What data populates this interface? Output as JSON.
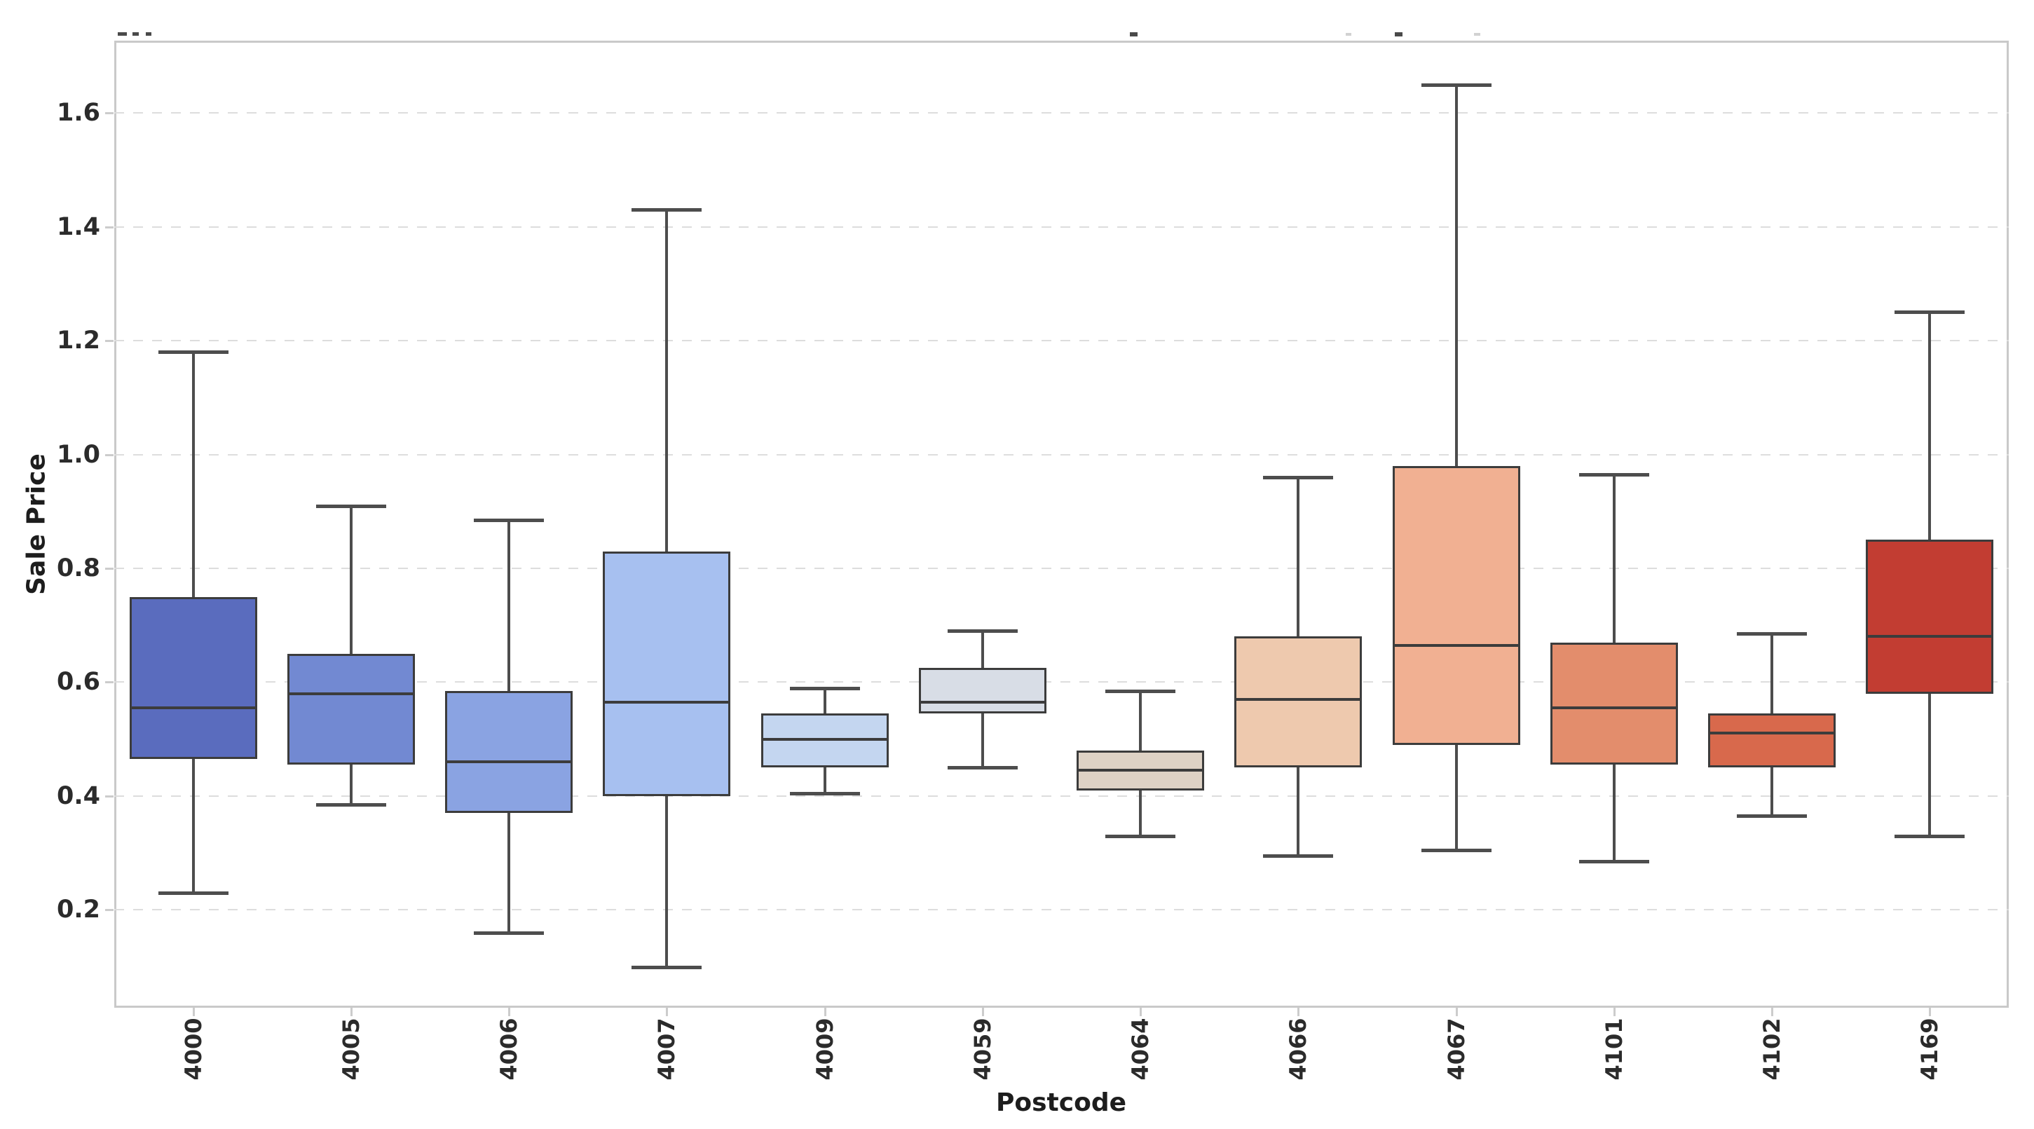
{
  "figure": {
    "ylabel": "Sale Price",
    "xlabel": "Postcode"
  },
  "chart_data": {
    "type": "box",
    "title": "",
    "xlabel": "Postcode",
    "ylabel": "Sale Price",
    "categories": [
      "4000",
      "4005",
      "4006",
      "4007",
      "4009",
      "4059",
      "4064",
      "4066",
      "4067",
      "4101",
      "4102",
      "4169"
    ],
    "yticks": [
      0.2,
      0.4,
      0.6,
      0.8,
      1.0,
      1.2,
      1.4,
      1.6
    ],
    "ylim": [
      0.028,
      1.727
    ],
    "grid": "horizontal-dashed",
    "legend": "none",
    "palette": [
      "#5a6cbe",
      "#7289d2",
      "#8aa3e2",
      "#a7c0f0",
      "#c4d6f0",
      "#d8dde6",
      "#ded2c5",
      "#eec9ae",
      "#f1b092",
      "#e38d6c",
      "#d8694c",
      "#c23d32"
    ],
    "series": [
      {
        "category": "4000",
        "whisker_low": 0.23,
        "q1": 0.465,
        "median": 0.555,
        "q3": 0.75,
        "whisker_high": 1.18,
        "color": "#5a6cbe"
      },
      {
        "category": "4005",
        "whisker_low": 0.385,
        "q1": 0.455,
        "median": 0.58,
        "q3": 0.65,
        "whisker_high": 0.91,
        "color": "#7289d2"
      },
      {
        "category": "4006",
        "whisker_low": 0.16,
        "q1": 0.37,
        "median": 0.46,
        "q3": 0.585,
        "whisker_high": 0.885,
        "color": "#8aa3e2"
      },
      {
        "category": "4007",
        "whisker_low": 0.1,
        "q1": 0.4,
        "median": 0.565,
        "q3": 0.83,
        "whisker_high": 1.43,
        "color": "#a7c0f0"
      },
      {
        "category": "4009",
        "whisker_low": 0.405,
        "q1": 0.45,
        "median": 0.5,
        "q3": 0.545,
        "whisker_high": 0.59,
        "color": "#c4d6f0"
      },
      {
        "category": "4059",
        "whisker_low": 0.45,
        "q1": 0.545,
        "median": 0.565,
        "q3": 0.625,
        "whisker_high": 0.69,
        "color": "#d8dde6"
      },
      {
        "category": "4064",
        "whisker_low": 0.33,
        "q1": 0.41,
        "median": 0.445,
        "q3": 0.48,
        "whisker_high": 0.585,
        "color": "#ded2c5"
      },
      {
        "category": "4066",
        "whisker_low": 0.295,
        "q1": 0.45,
        "median": 0.57,
        "q3": 0.68,
        "whisker_high": 0.96,
        "color": "#eec9ae"
      },
      {
        "category": "4067",
        "whisker_low": 0.305,
        "q1": 0.49,
        "median": 0.665,
        "q3": 0.98,
        "whisker_high": 1.65,
        "color": "#f1b092"
      },
      {
        "category": "4101",
        "whisker_low": 0.285,
        "q1": 0.455,
        "median": 0.555,
        "q3": 0.67,
        "whisker_high": 0.965,
        "color": "#e38d6c"
      },
      {
        "category": "4102",
        "whisker_low": 0.365,
        "q1": 0.45,
        "median": 0.51,
        "q3": 0.545,
        "whisker_high": 0.685,
        "color": "#d8694c"
      },
      {
        "category": "4169",
        "whisker_low": 0.33,
        "q1": 0.58,
        "median": 0.68,
        "q3": 0.85,
        "whisker_high": 1.25,
        "color": "#c23d32"
      }
    ]
  }
}
